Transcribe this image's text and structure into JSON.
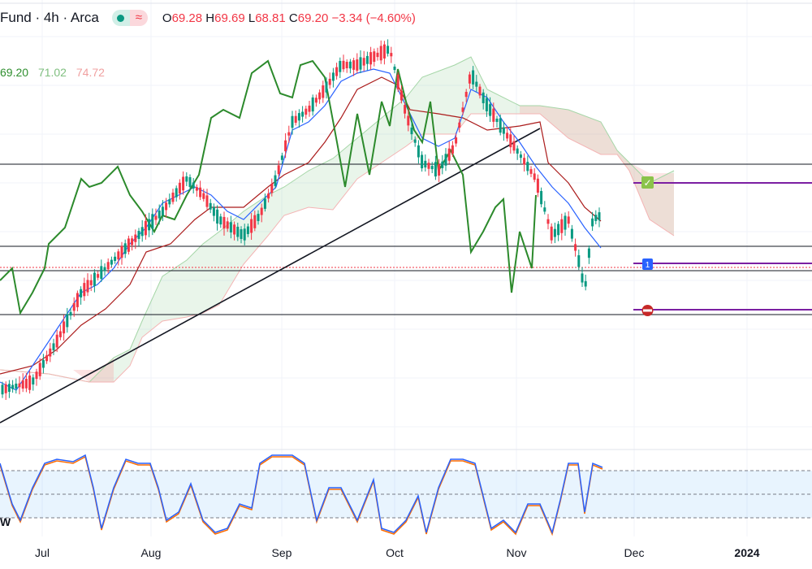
{
  "legend": {
    "title": "Fund · 4h · Arca",
    "o_label": "O",
    "o_value": "69.28",
    "h_label": "H",
    "h_value": "69.69",
    "l_label": "L",
    "l_value": "68.81",
    "c_label": "C",
    "c_value": "69.20",
    "change": "−3.34 (−4.60%)",
    "wave_icon": "≈"
  },
  "ichimoku": {
    "v1": "69.20",
    "v1_color": "#2f8f2f",
    "v2": "71.02",
    "v2_color": "#7fbf7f",
    "v3": "74.72",
    "v3_color": "#f0a0a0"
  },
  "xaxis": {
    "labels": [
      "Jul",
      "Aug",
      "Sep",
      "Oct",
      "Nov",
      "Dec",
      "2024"
    ]
  },
  "oscillator": {
    "label": "W"
  },
  "markers": {
    "check": "✓",
    "one": "1",
    "stop": "−"
  },
  "colors": {
    "up": "#089981",
    "down": "#f23645",
    "base": "#ab1b1b",
    "conv": "#2962ff",
    "lag": "#2c8a2c",
    "kumo_green": "#4caf50",
    "kumo_red": "#f7a9a9",
    "stoch_k": "#2962ff",
    "stoch_d": "#ff6d00",
    "purple": "#7b1fa2"
  }
}
